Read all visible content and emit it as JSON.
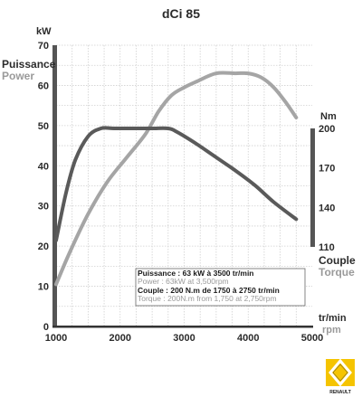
{
  "chart_data": {
    "type": "line",
    "title": "dCi 85",
    "x_axis": {
      "unit_fr": "tr/min",
      "unit_en": "rpm",
      "range": [
        1000,
        5000
      ],
      "ticks": [
        1000,
        2000,
        3000,
        4000,
        5000
      ]
    },
    "y_left": {
      "unit": "kW",
      "label_fr": "Puissance",
      "label_en": "Power",
      "range": [
        0,
        70
      ],
      "ticks": [
        0,
        10,
        20,
        30,
        40,
        50,
        60,
        70
      ]
    },
    "y_right": {
      "unit": "Nm",
      "label_fr": "Couple",
      "label_en": "Torque",
      "range": [
        110,
        200
      ],
      "ticks": [
        110,
        140,
        170,
        200
      ]
    },
    "series": [
      {
        "name": "Power",
        "axis": "left",
        "color": "#a5a5a5",
        "points": [
          [
            1000,
            10.5
          ],
          [
            1200,
            18
          ],
          [
            1500,
            28
          ],
          [
            1800,
            36
          ],
          [
            2100,
            42
          ],
          [
            2400,
            48
          ],
          [
            2600,
            53.5
          ],
          [
            2800,
            57.5
          ],
          [
            3000,
            59.5
          ],
          [
            3200,
            61
          ],
          [
            3500,
            63
          ],
          [
            3800,
            63
          ],
          [
            4000,
            63
          ],
          [
            4200,
            62
          ],
          [
            4400,
            59.5
          ],
          [
            4600,
            55.5
          ],
          [
            4750,
            52
          ]
        ]
      },
      {
        "name": "Torque",
        "axis": "right",
        "color": "#5a5a5a",
        "points": [
          [
            1000,
            115
          ],
          [
            1150,
            150
          ],
          [
            1300,
            176
          ],
          [
            1500,
            194
          ],
          [
            1700,
            200
          ],
          [
            1900,
            200
          ],
          [
            2200,
            200
          ],
          [
            2500,
            200
          ],
          [
            2750,
            200
          ],
          [
            2900,
            197
          ],
          [
            3200,
            188
          ],
          [
            3500,
            178
          ],
          [
            3800,
            168
          ],
          [
            4100,
            157
          ],
          [
            4400,
            144
          ],
          [
            4750,
            131
          ]
        ]
      }
    ],
    "grid": true
  },
  "legend": {
    "line1": "Puissance : 63 kW à 3500 tr/min",
    "line2": "Power : 63kW at 3,500rpm",
    "line3": "Couple : 200 N.m de 1750 à 2750 tr/min",
    "line4": "Torque : 200N.m from 1,750 at 2,750rpm"
  },
  "logo": {
    "text": "RENAULT",
    "color": "#f5c400"
  }
}
